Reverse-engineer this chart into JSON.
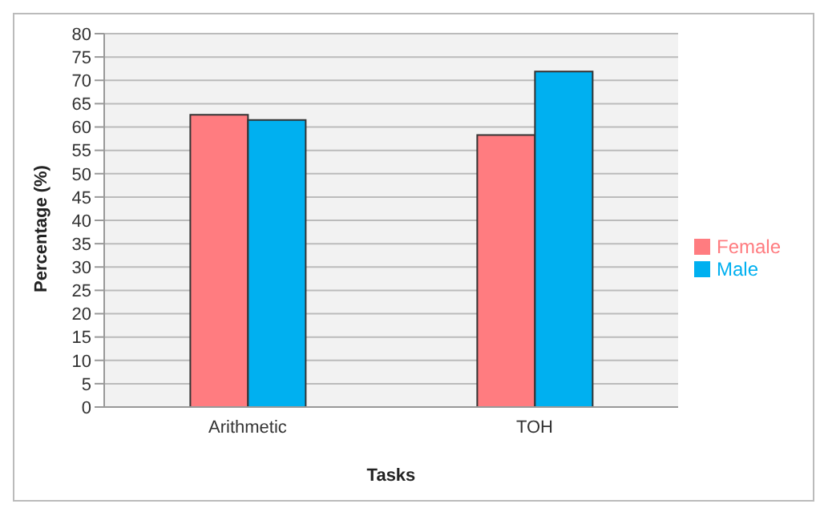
{
  "chart_data": {
    "type": "bar",
    "xlabel": "Tasks",
    "ylabel": "Percentage (%)",
    "categories": [
      "Arithmetic",
      "TOH"
    ],
    "series": [
      {
        "name": "Female",
        "color": "#ff7c80",
        "values": [
          62.6,
          58.3
        ]
      },
      {
        "name": "Male",
        "color": "#00b0f0",
        "values": [
          61.5,
          71.9
        ]
      }
    ],
    "ylim": [
      0,
      80
    ],
    "yticks": [
      0,
      5,
      10,
      15,
      20,
      25,
      30,
      35,
      40,
      45,
      50,
      55,
      60,
      65,
      70,
      75,
      80
    ],
    "grid": "y",
    "legend": "right"
  }
}
